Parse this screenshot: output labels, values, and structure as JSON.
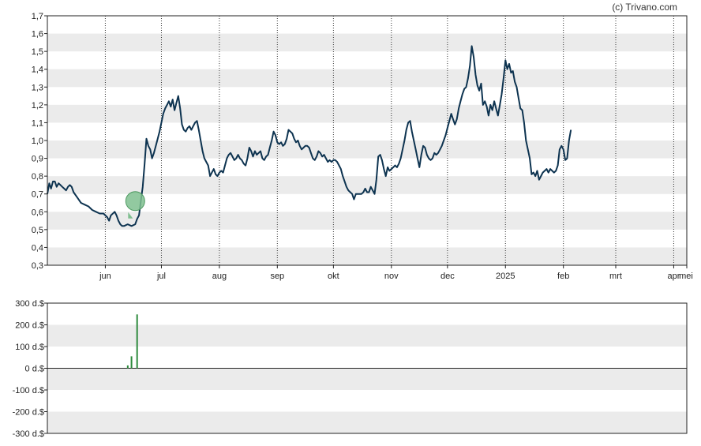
{
  "copyright": "(c) Trivano.com",
  "colors": {
    "line": "#0d3350",
    "band": "#ebebeb",
    "volume": "#2e8b3e",
    "marker_fill": "#7fbf8f",
    "marker_stroke": "#4f9a62"
  },
  "chart_data": [
    {
      "type": "line",
      "title": "",
      "xlabel": "",
      "ylabel": "",
      "ylim": [
        0.3,
        1.7
      ],
      "y_ticks": [
        "0,3",
        "0,4",
        "0,5",
        "0,6",
        "0,7",
        "0,8",
        "0,9",
        "1,0",
        "1,1",
        "1,2",
        "1,3",
        "1,4",
        "1,5",
        "1,6",
        "1,7"
      ],
      "x_ticks": [
        "jun",
        "jul",
        "aug",
        "sep",
        "okt",
        "nov",
        "dec",
        "2025",
        "feb",
        "mrt",
        "apr",
        "mei"
      ],
      "grid": "alternating horizontal bands, dotted vertical lines at month starts",
      "x_range_days": [
        0,
        342
      ],
      "month_start_days": [
        31,
        61,
        92,
        123,
        153,
        184,
        214,
        245,
        276,
        304,
        335,
        342
      ],
      "series": [
        {
          "name": "",
          "points": [
            [
              0,
              0.7
            ],
            [
              1,
              0.76
            ],
            [
              2,
              0.73
            ],
            [
              3,
              0.77
            ],
            [
              4,
              0.77
            ],
            [
              5,
              0.74
            ],
            [
              6,
              0.76
            ],
            [
              7,
              0.75
            ],
            [
              8,
              0.74
            ],
            [
              9,
              0.73
            ],
            [
              10,
              0.72
            ],
            [
              11,
              0.74
            ],
            [
              12,
              0.75
            ],
            [
              13,
              0.74
            ],
            [
              14,
              0.71
            ],
            [
              16,
              0.68
            ],
            [
              18,
              0.65
            ],
            [
              20,
              0.64
            ],
            [
              22,
              0.63
            ],
            [
              24,
              0.61
            ],
            [
              26,
              0.6
            ],
            [
              28,
              0.59
            ],
            [
              30,
              0.59
            ],
            [
              32,
              0.57
            ],
            [
              33,
              0.55
            ],
            [
              34,
              0.58
            ],
            [
              36,
              0.6
            ],
            [
              37,
              0.58
            ],
            [
              38,
              0.55
            ],
            [
              39,
              0.53
            ],
            [
              40,
              0.52
            ],
            [
              41,
              0.52
            ],
            [
              43,
              0.53
            ],
            [
              45,
              0.52
            ],
            [
              47,
              0.53
            ],
            [
              48,
              0.56
            ],
            [
              49,
              0.58
            ],
            [
              50,
              0.66
            ],
            [
              51,
              0.74
            ],
            [
              52,
              0.87
            ],
            [
              53,
              1.01
            ],
            [
              54,
              0.97
            ],
            [
              55,
              0.95
            ],
            [
              56,
              0.9
            ],
            [
              57,
              0.93
            ],
            [
              58,
              0.97
            ],
            [
              60,
              1.05
            ],
            [
              62,
              1.15
            ],
            [
              63,
              1.18
            ],
            [
              64,
              1.2
            ],
            [
              65,
              1.22
            ],
            [
              66,
              1.19
            ],
            [
              67,
              1.23
            ],
            [
              68,
              1.17
            ],
            [
              69,
              1.21
            ],
            [
              70,
              1.25
            ],
            [
              71,
              1.18
            ],
            [
              72,
              1.09
            ],
            [
              73,
              1.06
            ],
            [
              74,
              1.05
            ],
            [
              75,
              1.07
            ],
            [
              76,
              1.08
            ],
            [
              77,
              1.06
            ],
            [
              78,
              1.08
            ],
            [
              79,
              1.1
            ],
            [
              80,
              1.11
            ],
            [
              81,
              1.06
            ],
            [
              82,
              1.0
            ],
            [
              83,
              0.94
            ],
            [
              84,
              0.9
            ],
            [
              85,
              0.88
            ],
            [
              86,
              0.86
            ],
            [
              87,
              0.8
            ],
            [
              88,
              0.82
            ],
            [
              89,
              0.84
            ],
            [
              90,
              0.81
            ],
            [
              91,
              0.8
            ],
            [
              92,
              0.82
            ],
            [
              93,
              0.83
            ],
            [
              94,
              0.82
            ],
            [
              95,
              0.86
            ],
            [
              96,
              0.9
            ],
            [
              97,
              0.92
            ],
            [
              98,
              0.93
            ],
            [
              99,
              0.91
            ],
            [
              100,
              0.89
            ],
            [
              101,
              0.9
            ],
            [
              102,
              0.92
            ],
            [
              103,
              0.9
            ],
            [
              104,
              0.89
            ],
            [
              105,
              0.87
            ],
            [
              106,
              0.86
            ],
            [
              107,
              0.9
            ],
            [
              108,
              0.96
            ],
            [
              109,
              0.94
            ],
            [
              110,
              0.91
            ],
            [
              111,
              0.94
            ],
            [
              112,
              0.92
            ],
            [
              113,
              0.93
            ],
            [
              114,
              0.94
            ],
            [
              115,
              0.9
            ],
            [
              116,
              0.89
            ],
            [
              117,
              0.91
            ],
            [
              118,
              0.92
            ],
            [
              119,
              0.96
            ],
            [
              120,
              1.0
            ],
            [
              121,
              1.05
            ],
            [
              122,
              1.03
            ],
            [
              123,
              0.99
            ],
            [
              124,
              0.98
            ],
            [
              125,
              0.99
            ],
            [
              126,
              0.97
            ],
            [
              127,
              0.98
            ],
            [
              128,
              1.01
            ],
            [
              129,
              1.06
            ],
            [
              130,
              1.05
            ],
            [
              131,
              1.04
            ],
            [
              132,
              1.01
            ],
            [
              133,
              0.99
            ],
            [
              134,
              1.0
            ],
            [
              135,
              0.97
            ],
            [
              136,
              0.95
            ],
            [
              137,
              0.96
            ],
            [
              138,
              0.97
            ],
            [
              139,
              0.97
            ],
            [
              140,
              0.96
            ],
            [
              141,
              0.93
            ],
            [
              142,
              0.9
            ],
            [
              143,
              0.89
            ],
            [
              144,
              0.91
            ],
            [
              145,
              0.94
            ],
            [
              146,
              0.93
            ],
            [
              147,
              0.91
            ],
            [
              148,
              0.92
            ],
            [
              149,
              0.9
            ],
            [
              150,
              0.88
            ],
            [
              151,
              0.89
            ],
            [
              152,
              0.88
            ],
            [
              153,
              0.89
            ],
            [
              154,
              0.89
            ],
            [
              155,
              0.88
            ],
            [
              156,
              0.86
            ],
            [
              157,
              0.84
            ],
            [
              158,
              0.8
            ],
            [
              159,
              0.77
            ],
            [
              160,
              0.74
            ],
            [
              161,
              0.72
            ],
            [
              162,
              0.71
            ],
            [
              163,
              0.7
            ],
            [
              164,
              0.67
            ],
            [
              165,
              0.7
            ],
            [
              166,
              0.7
            ],
            [
              167,
              0.7
            ],
            [
              168,
              0.7
            ],
            [
              169,
              0.71
            ],
            [
              170,
              0.73
            ],
            [
              171,
              0.71
            ],
            [
              172,
              0.71
            ],
            [
              173,
              0.74
            ],
            [
              174,
              0.72
            ],
            [
              175,
              0.7
            ],
            [
              176,
              0.78
            ],
            [
              177,
              0.91
            ],
            [
              178,
              0.92
            ],
            [
              179,
              0.89
            ],
            [
              180,
              0.84
            ],
            [
              181,
              0.8
            ],
            [
              182,
              0.85
            ],
            [
              183,
              0.83
            ],
            [
              184,
              0.84
            ],
            [
              185,
              0.85
            ],
            [
              186,
              0.86
            ],
            [
              187,
              0.85
            ],
            [
              188,
              0.87
            ],
            [
              189,
              0.9
            ],
            [
              190,
              0.95
            ],
            [
              191,
              1.0
            ],
            [
              192,
              1.06
            ],
            [
              193,
              1.1
            ],
            [
              194,
              1.11
            ],
            [
              195,
              1.05
            ],
            [
              196,
              1.0
            ],
            [
              197,
              0.95
            ],
            [
              198,
              0.9
            ],
            [
              199,
              0.85
            ],
            [
              200,
              0.92
            ],
            [
              201,
              0.97
            ],
            [
              202,
              0.96
            ],
            [
              203,
              0.92
            ],
            [
              204,
              0.9
            ],
            [
              205,
              0.89
            ],
            [
              206,
              0.9
            ],
            [
              207,
              0.93
            ],
            [
              208,
              0.92
            ],
            [
              209,
              0.93
            ],
            [
              210,
              0.95
            ],
            [
              211,
              0.97
            ],
            [
              212,
              1.0
            ],
            [
              213,
              1.03
            ],
            [
              214,
              1.07
            ],
            [
              215,
              1.11
            ],
            [
              216,
              1.15
            ],
            [
              217,
              1.12
            ],
            [
              218,
              1.09
            ],
            [
              219,
              1.12
            ],
            [
              220,
              1.18
            ],
            [
              221,
              1.22
            ],
            [
              222,
              1.26
            ],
            [
              223,
              1.29
            ],
            [
              224,
              1.3
            ],
            [
              225,
              1.35
            ],
            [
              226,
              1.42
            ],
            [
              227,
              1.53
            ],
            [
              228,
              1.47
            ],
            [
              229,
              1.37
            ],
            [
              230,
              1.31
            ],
            [
              231,
              1.28
            ],
            [
              232,
              1.32
            ],
            [
              233,
              1.2
            ],
            [
              234,
              1.22
            ],
            [
              235,
              1.19
            ],
            [
              236,
              1.14
            ],
            [
              237,
              1.2
            ],
            [
              238,
              1.17
            ],
            [
              239,
              1.22
            ],
            [
              240,
              1.18
            ],
            [
              241,
              1.14
            ],
            [
              242,
              1.2
            ],
            [
              243,
              1.26
            ],
            [
              244,
              1.35
            ],
            [
              245,
              1.45
            ],
            [
              246,
              1.4
            ],
            [
              247,
              1.43
            ],
            [
              248,
              1.38
            ],
            [
              249,
              1.39
            ],
            [
              250,
              1.33
            ],
            [
              251,
              1.3
            ],
            [
              252,
              1.24
            ],
            [
              253,
              1.18
            ],
            [
              254,
              1.17
            ],
            [
              255,
              1.1
            ],
            [
              256,
              1.0
            ],
            [
              257,
              0.95
            ],
            [
              258,
              0.9
            ],
            [
              259,
              0.81
            ],
            [
              260,
              0.82
            ],
            [
              261,
              0.8
            ],
            [
              262,
              0.83
            ],
            [
              263,
              0.78
            ],
            [
              264,
              0.8
            ],
            [
              265,
              0.82
            ],
            [
              266,
              0.83
            ],
            [
              267,
              0.84
            ],
            [
              268,
              0.82
            ],
            [
              269,
              0.84
            ],
            [
              270,
              0.83
            ],
            [
              271,
              0.82
            ],
            [
              272,
              0.83
            ],
            [
              273,
              0.86
            ],
            [
              274,
              0.95
            ],
            [
              275,
              0.97
            ],
            [
              276,
              0.95
            ],
            [
              277,
              0.89
            ],
            [
              278,
              0.9
            ],
            [
              279,
              1.0
            ],
            [
              280,
              1.06
            ]
          ]
        }
      ],
      "annotations": [
        {
          "type": "marker",
          "x": 47,
          "y": 0.66
        }
      ]
    },
    {
      "type": "bar",
      "title": "",
      "xlabel": "",
      "ylabel": "",
      "ylim": [
        -300,
        300
      ],
      "y_ticks": [
        "300 d.$",
        "200 d.$",
        "100 d.$",
        "0 d.$",
        "-100 d.$",
        "-200 d.$",
        "-300 d.$"
      ],
      "grid": "alternating horizontal bands",
      "bars": [
        {
          "x": 43,
          "value": 13
        },
        {
          "x": 45,
          "value": 55
        },
        {
          "x": 48,
          "value": 248
        }
      ]
    }
  ]
}
